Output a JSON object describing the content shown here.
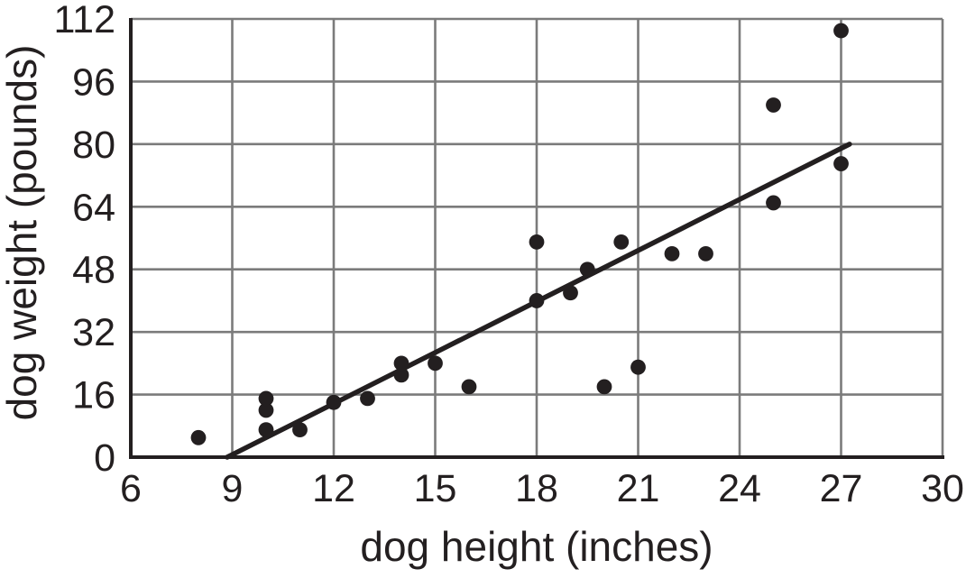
{
  "figure": {
    "background_color": "#ffffff",
    "text_color": "#231f20",
    "grid_color": "#7b7b7b",
    "axis_color": "#231f20",
    "point_color": "#231f20",
    "trend_line_color": "#231f20"
  },
  "chart_data": {
    "type": "scatter",
    "title": "",
    "xlabel": "dog height (inches)",
    "ylabel": "dog weight (pounds)",
    "xlim": [
      6,
      30
    ],
    "ylim": [
      0,
      112
    ],
    "xticks": [
      6,
      9,
      12,
      15,
      18,
      21,
      24,
      27,
      30
    ],
    "yticks": [
      0,
      16,
      32,
      48,
      64,
      80,
      96,
      112
    ],
    "grid": true,
    "legend": false,
    "points": [
      [
        8,
        5
      ],
      [
        10,
        7
      ],
      [
        10,
        12
      ],
      [
        10,
        15
      ],
      [
        11,
        7
      ],
      [
        12,
        14
      ],
      [
        13,
        15
      ],
      [
        14,
        21
      ],
      [
        14,
        24
      ],
      [
        15,
        24
      ],
      [
        16,
        18
      ],
      [
        18,
        40
      ],
      [
        18,
        55
      ],
      [
        19,
        42
      ],
      [
        19.5,
        48
      ],
      [
        20,
        18
      ],
      [
        20.5,
        55
      ],
      [
        21,
        23
      ],
      [
        22,
        52
      ],
      [
        23,
        52
      ],
      [
        25,
        65
      ],
      [
        25,
        90
      ],
      [
        27,
        75
      ],
      [
        27,
        109
      ]
    ],
    "trend_line": {
      "x1": 8.85,
      "y1": 0,
      "x2": 27.25,
      "y2": 80,
      "description": "best-fit line rising from about (9, 0) to about (27, 79)"
    }
  }
}
